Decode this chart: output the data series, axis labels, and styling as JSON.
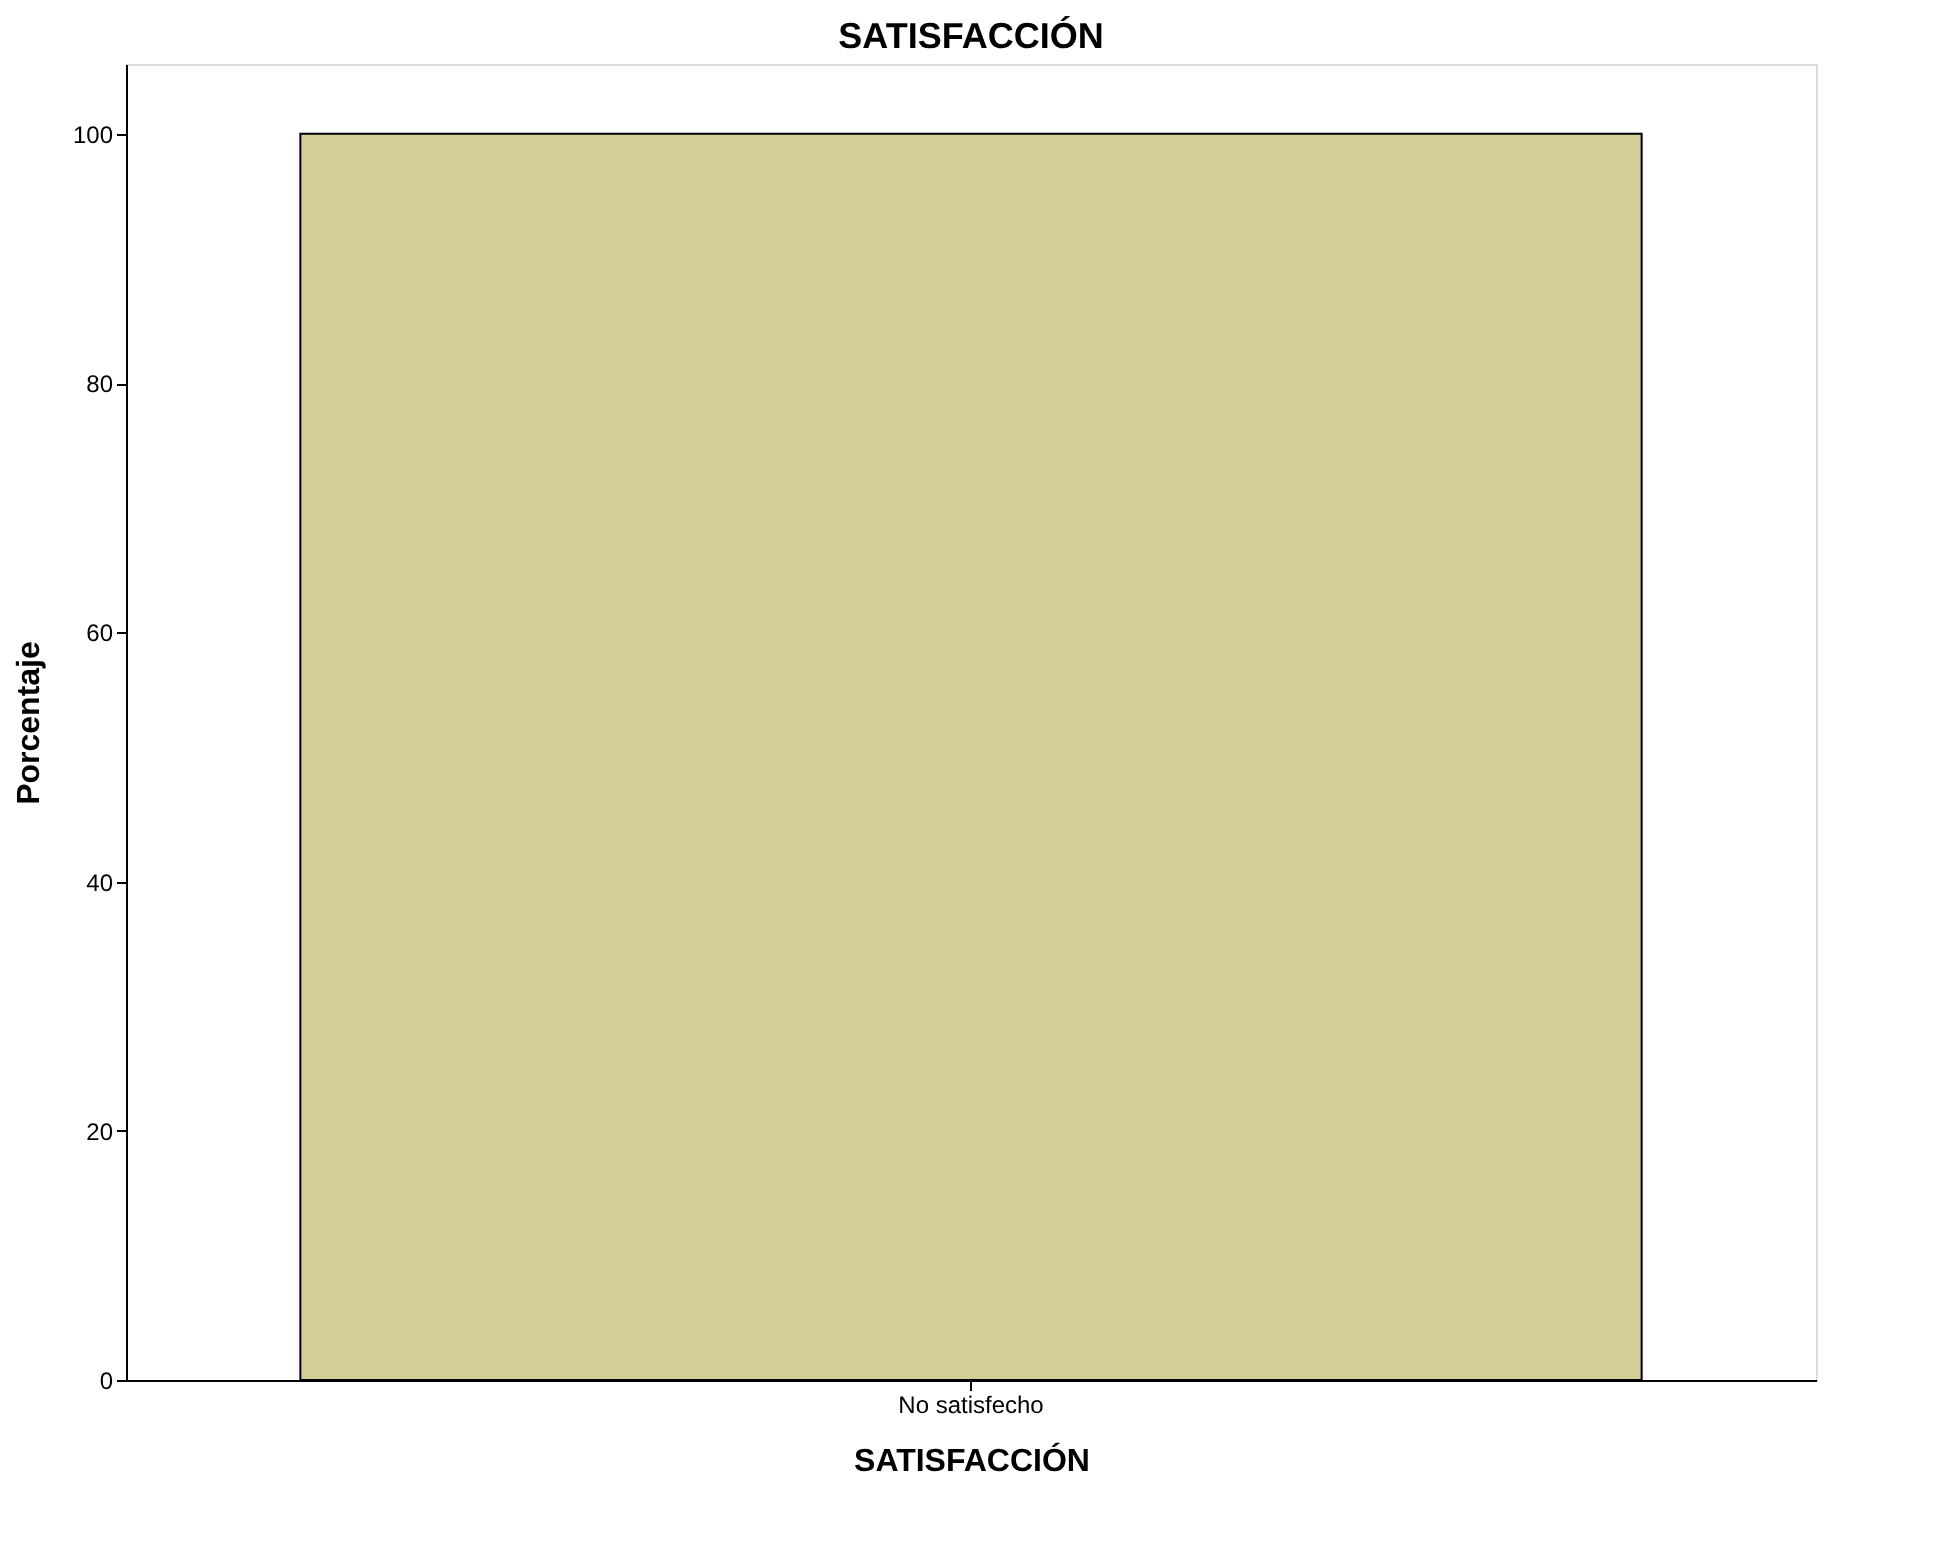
{
  "chart_data": {
    "type": "bar",
    "title": "SATISFACCIÓN",
    "xlabel": "SATISFACCIÓN",
    "ylabel": "Porcentaje",
    "categories": [
      "No satisfecho"
    ],
    "values": [
      100
    ],
    "color": "#d3ce97",
    "ylim": [
      0,
      105.6
    ],
    "yticks": [
      0,
      20,
      40,
      60,
      80,
      100
    ],
    "grid": false
  }
}
